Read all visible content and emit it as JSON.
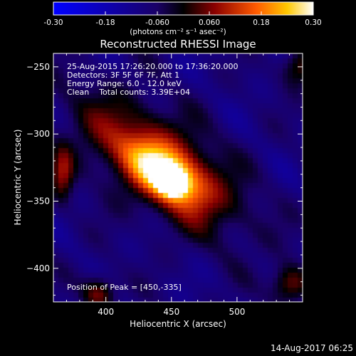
{
  "chart_data": {
    "type": "heatmap",
    "title": "Reconstructed RHESSI Image",
    "xlabel": "Heliocentric X (arcsec)",
    "ylabel": "Heliocentric Y (arcsec)",
    "xlim": [
      360,
      550
    ],
    "ylim": [
      -425,
      -240
    ],
    "xticks": [
      400,
      450,
      500
    ],
    "yticks": [
      -250,
      -300,
      -350,
      -400
    ],
    "colorbar": {
      "label": "(photons cm⁻² s⁻¹ asec⁻²)",
      "range": [
        -0.3,
        0.3
      ],
      "ticks": [
        "-0.30",
        "-0.18",
        "-0.060",
        "0.060",
        "0.18",
        "0.30"
      ],
      "colormap": [
        "#0000ff",
        "#000000",
        "#8a0000",
        "#ff5a00",
        "#ffc800",
        "#ffffff"
      ]
    },
    "annotations": [
      "25-Aug-2015 17:26:20.000 to 17:36:20.000",
      "Detectors: 3F 5F 6F 7F, Att 1",
      "Energy Range: 6.0 - 12.0 keV",
      "Clean    Total counts: 3.39E+04"
    ],
    "peak_text": "Position of Peak = [450,-335]",
    "peak": [
      450,
      -335
    ],
    "source_angle_deg": -35,
    "background_color": "#3a1a6e",
    "sources": [
      {
        "x": 450,
        "y": -335,
        "sx": 7,
        "sy": 6,
        "amp": 0.3
      },
      {
        "x": 447,
        "y": -330,
        "sx": 22,
        "sy": 11,
        "amp": 0.17
      },
      {
        "x": 440,
        "y": -322,
        "sx": 48,
        "sy": 22,
        "amp": 0.12
      },
      {
        "x": 395,
        "y": -418,
        "sx": 9,
        "sy": 9,
        "amp": 0.07
      },
      {
        "x": 540,
        "y": -412,
        "sx": 10,
        "sy": 10,
        "amp": 0.07
      },
      {
        "x": 367,
        "y": -330,
        "sx": 6,
        "sy": 14,
        "amp": 0.06
      },
      {
        "x": 548,
        "y": -250,
        "sx": 10,
        "sy": 10,
        "amp": 0.05
      }
    ]
  },
  "footer": {
    "timestamp": "14-Aug-2017 06:25"
  }
}
